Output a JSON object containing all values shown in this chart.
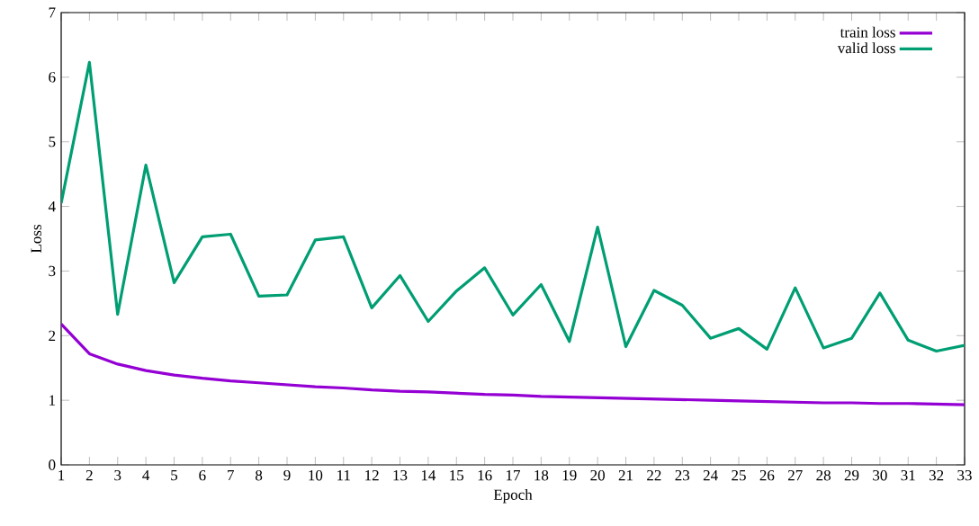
{
  "chart_data": {
    "type": "line",
    "xlabel": "Epoch",
    "ylabel": "Loss",
    "x": [
      1,
      2,
      3,
      4,
      5,
      6,
      7,
      8,
      9,
      10,
      11,
      12,
      13,
      14,
      15,
      16,
      17,
      18,
      19,
      20,
      21,
      22,
      23,
      24,
      25,
      26,
      27,
      28,
      29,
      30,
      31,
      32,
      33
    ],
    "series": [
      {
        "name": "train loss",
        "color": "#9400d3",
        "values": [
          2.18,
          1.72,
          1.56,
          1.46,
          1.39,
          1.34,
          1.3,
          1.27,
          1.24,
          1.21,
          1.19,
          1.16,
          1.14,
          1.13,
          1.11,
          1.09,
          1.08,
          1.06,
          1.05,
          1.04,
          1.03,
          1.02,
          1.01,
          1.0,
          0.99,
          0.98,
          0.97,
          0.96,
          0.96,
          0.95,
          0.95,
          0.94,
          0.93
        ]
      },
      {
        "name": "valid loss",
        "color": "#009e73",
        "values": [
          4.05,
          6.23,
          2.33,
          4.64,
          2.82,
          3.53,
          3.57,
          2.61,
          2.63,
          3.48,
          3.53,
          2.43,
          2.93,
          2.22,
          2.69,
          3.05,
          2.32,
          2.79,
          1.91,
          3.68,
          1.83,
          2.7,
          2.47,
          1.96,
          2.11,
          1.79,
          2.74,
          1.81,
          1.96,
          2.66,
          1.93,
          1.76,
          1.85
        ]
      }
    ],
    "xlim": [
      1,
      33
    ],
    "xticks": [
      1,
      2,
      3,
      4,
      5,
      6,
      7,
      8,
      9,
      10,
      11,
      12,
      13,
      14,
      15,
      16,
      17,
      18,
      19,
      20,
      21,
      22,
      23,
      24,
      25,
      26,
      27,
      28,
      29,
      30,
      31,
      32,
      33
    ],
    "ylim": [
      0,
      7
    ],
    "yticks": [
      0,
      1,
      2,
      3,
      4,
      5,
      6,
      7
    ],
    "legend": "top right",
    "marker": "none",
    "line_style": "solid",
    "grid": false
  }
}
